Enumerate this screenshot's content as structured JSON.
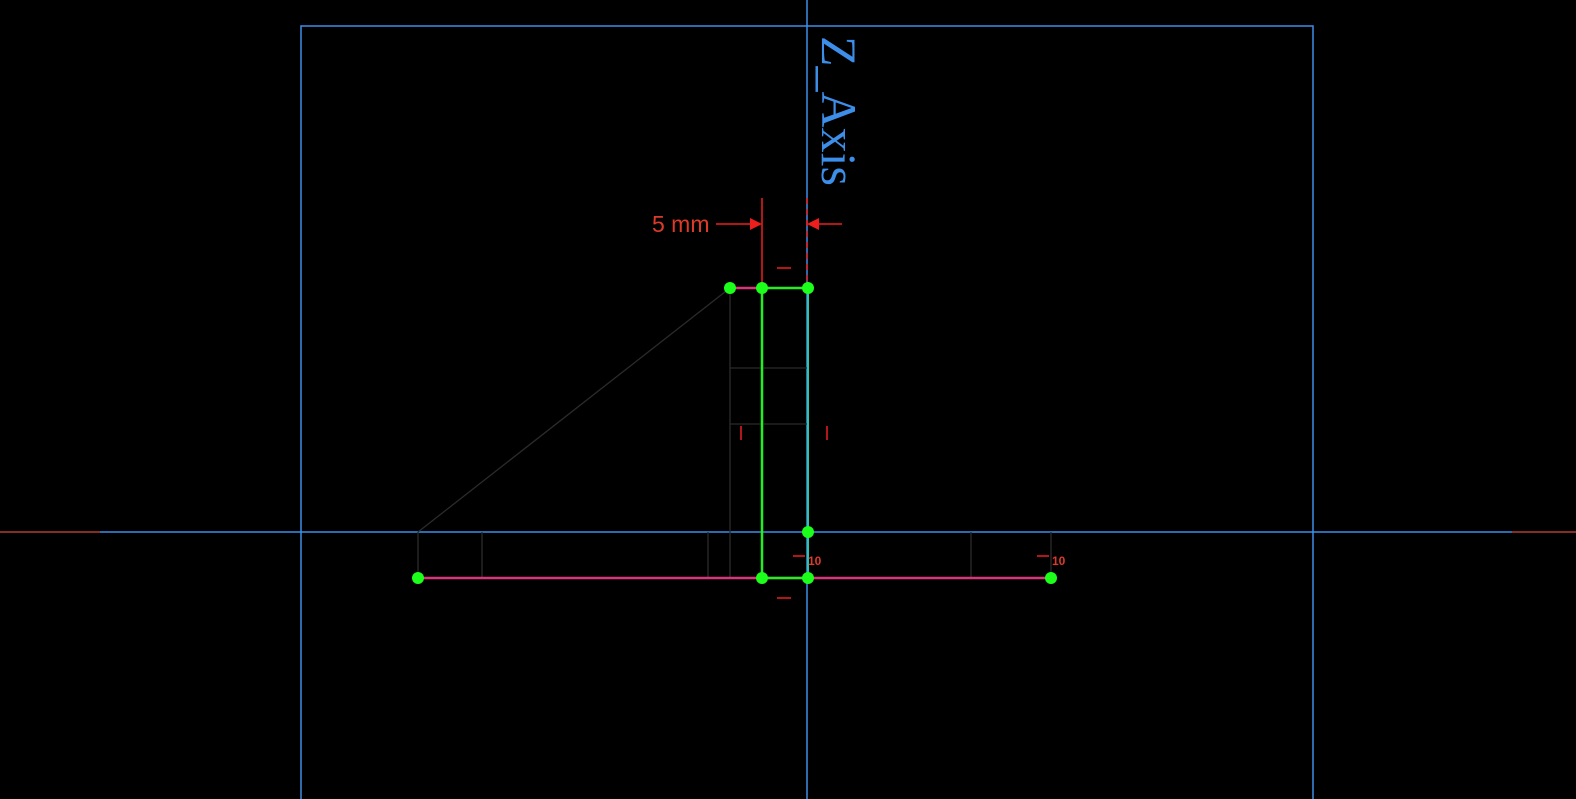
{
  "view": {
    "background": "#000000"
  },
  "colors": {
    "axis_blue": "#3d8ee8",
    "axis_h_red": "#d44a3a",
    "geometry_green": "#22ee22",
    "construction_magenta": "#d8367a",
    "dimension_red": "#ee1e1e",
    "dimension_text": "#dd3a2a",
    "vertex_green": "#1bff1b",
    "ghost_gray": "#333333"
  },
  "axes": {
    "z_axis_label": "Z_Axis"
  },
  "dimension": {
    "value_label": "5 mm"
  },
  "constraints": {
    "left_value": "10",
    "right_value": "10"
  },
  "icons": {
    "vertex": "filled-circle",
    "dimension_arrow": "triangle-arrow",
    "horizontal_constraint": "short-dash",
    "vertical_constraint": "short-tick"
  }
}
